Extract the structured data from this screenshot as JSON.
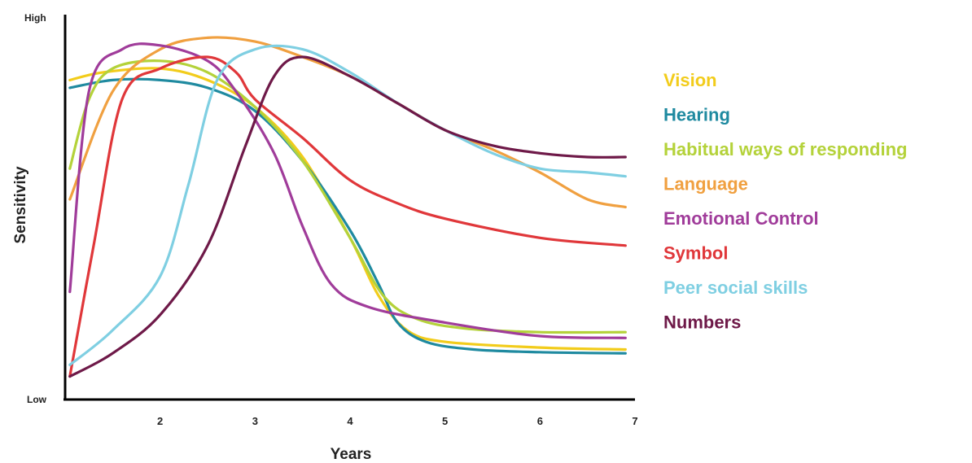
{
  "chart_data": {
    "type": "line",
    "xlabel": "Years",
    "ylabel": "Sensitivity",
    "y_low_label": "Low",
    "y_high_label": "High",
    "x": [
      2,
      3,
      4,
      5,
      6,
      7
    ],
    "xticks": [
      "2",
      "3",
      "4",
      "5",
      "6",
      "7"
    ],
    "xlim": [
      1,
      7
    ],
    "ylim": [
      0,
      100
    ],
    "grid": false,
    "legend_position": "right",
    "series": [
      {
        "name": "Vision",
        "color": "#f2cc1b",
        "points": [
          [
            1.05,
            83
          ],
          [
            1.4,
            85
          ],
          [
            2,
            86
          ],
          [
            2.5,
            83
          ],
          [
            3,
            76
          ],
          [
            3.5,
            63
          ],
          [
            4,
            42
          ],
          [
            4.3,
            27
          ],
          [
            4.6,
            18
          ],
          [
            5,
            15
          ],
          [
            6,
            13.5
          ],
          [
            6.9,
            13
          ]
        ]
      },
      {
        "name": "Hearing",
        "color": "#1f8aa0",
        "points": [
          [
            1.05,
            81
          ],
          [
            1.5,
            83
          ],
          [
            2,
            83
          ],
          [
            2.5,
            81
          ],
          [
            3,
            75
          ],
          [
            3.5,
            62
          ],
          [
            4,
            44
          ],
          [
            4.3,
            30
          ],
          [
            4.5,
            20
          ],
          [
            4.8,
            15
          ],
          [
            5.3,
            13
          ],
          [
            6,
            12.3
          ],
          [
            6.9,
            12
          ]
        ]
      },
      {
        "name": "Habitual ways of responding",
        "color": "#b4d23a",
        "points": [
          [
            1.05,
            60
          ],
          [
            1.25,
            78
          ],
          [
            1.5,
            86
          ],
          [
            2,
            88
          ],
          [
            2.5,
            85
          ],
          [
            3,
            76
          ],
          [
            3.5,
            62
          ],
          [
            4,
            42
          ],
          [
            4.35,
            27
          ],
          [
            4.7,
            21
          ],
          [
            5.2,
            18.5
          ],
          [
            6,
            17.5
          ],
          [
            6.9,
            17.5
          ]
        ]
      },
      {
        "name": "Language",
        "color": "#f0a040",
        "points": [
          [
            1.05,
            52
          ],
          [
            1.5,
            80
          ],
          [
            2,
            91
          ],
          [
            2.5,
            94
          ],
          [
            3,
            93
          ],
          [
            3.5,
            89
          ],
          [
            4,
            84
          ],
          [
            4.5,
            77
          ],
          [
            5,
            70
          ],
          [
            5.5,
            65
          ],
          [
            6,
            59
          ],
          [
            6.5,
            52
          ],
          [
            6.9,
            50
          ]
        ]
      },
      {
        "name": "Emotional Control",
        "color": "#a03c9a",
        "points": [
          [
            1.05,
            28
          ],
          [
            1.25,
            80
          ],
          [
            1.6,
            91
          ],
          [
            2,
            92
          ],
          [
            2.5,
            88
          ],
          [
            2.8,
            80
          ],
          [
            3.2,
            64
          ],
          [
            3.5,
            45
          ],
          [
            3.8,
            30
          ],
          [
            4.2,
            24
          ],
          [
            5,
            20
          ],
          [
            6,
            16.5
          ],
          [
            6.9,
            16
          ]
        ]
      },
      {
        "name": "Symbol",
        "color": "#e0373a",
        "points": [
          [
            1.05,
            6
          ],
          [
            1.3,
            40
          ],
          [
            1.6,
            78
          ],
          [
            2,
            86
          ],
          [
            2.5,
            89
          ],
          [
            2.8,
            85
          ],
          [
            3,
            78
          ],
          [
            3.5,
            68
          ],
          [
            4,
            57
          ],
          [
            4.5,
            51
          ],
          [
            5,
            47
          ],
          [
            6,
            42
          ],
          [
            6.9,
            40
          ]
        ]
      },
      {
        "name": "Peer social skills",
        "color": "#7fcfe2",
        "points": [
          [
            1.05,
            9
          ],
          [
            1.5,
            18
          ],
          [
            2,
            32
          ],
          [
            2.3,
            56
          ],
          [
            2.6,
            83
          ],
          [
            3,
            91
          ],
          [
            3.5,
            91
          ],
          [
            4,
            85
          ],
          [
            4.5,
            77
          ],
          [
            5,
            70
          ],
          [
            5.5,
            64
          ],
          [
            6,
            60
          ],
          [
            6.5,
            59
          ],
          [
            6.9,
            58
          ]
        ]
      },
      {
        "name": "Numbers",
        "color": "#6e1948",
        "points": [
          [
            1.05,
            6
          ],
          [
            1.5,
            12
          ],
          [
            2,
            22
          ],
          [
            2.5,
            40
          ],
          [
            2.9,
            66
          ],
          [
            3.2,
            84
          ],
          [
            3.5,
            89
          ],
          [
            4,
            84
          ],
          [
            4.5,
            77
          ],
          [
            5,
            70
          ],
          [
            5.5,
            66
          ],
          [
            6,
            64
          ],
          [
            6.5,
            63
          ],
          [
            6.9,
            63
          ]
        ]
      }
    ]
  }
}
